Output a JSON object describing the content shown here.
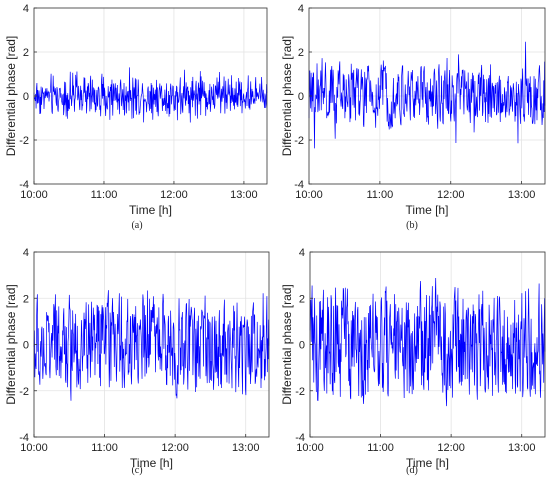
{
  "chart_data": [
    {
      "type": "line",
      "caption": "(a)",
      "xlabel": "Time [h]",
      "ylabel": "Differential phase [rad]",
      "xticks": [
        "10:00",
        "11:00",
        "12:00",
        "13:00"
      ],
      "xlim_hours": [
        10.0,
        13.33
      ],
      "ylim": [
        -4,
        4
      ],
      "yticks": [
        -4,
        -2,
        0,
        2,
        4
      ],
      "grid": true,
      "series": [
        {
          "color": "#0000ff",
          "amplitude_rad": 1.3
        }
      ]
    },
    {
      "type": "line",
      "caption": "(b)",
      "xlabel": "Time [h]",
      "ylabel": "Differential phase [rad]",
      "xticks": [
        "10:00",
        "11:00",
        "12:00",
        "13:00"
      ],
      "xlim_hours": [
        10.0,
        13.33
      ],
      "ylim": [
        -4,
        4
      ],
      "yticks": [
        -4,
        -2,
        0,
        2,
        4
      ],
      "grid": true,
      "series": [
        {
          "color": "#0000ff",
          "amplitude_rad": 3.0
        }
      ]
    },
    {
      "type": "line",
      "caption": "(c)",
      "xlabel": "Time [h]",
      "ylabel": "Differential phase [rad]",
      "xticks": [
        "10:00",
        "11:00",
        "12:00",
        "13:00"
      ],
      "xlim_hours": [
        10.0,
        13.33
      ],
      "ylim": [
        -4,
        4
      ],
      "yticks": [
        -4,
        -2,
        0,
        2,
        4
      ],
      "grid": true,
      "series": [
        {
          "color": "#0000ff",
          "amplitude_rad": 3.1
        }
      ]
    },
    {
      "type": "line",
      "caption": "(d)",
      "xlabel": "Time [h]",
      "ylabel": "Differential phase [rad]",
      "xticks": [
        "10:00",
        "11:00",
        "12:00",
        "13:00"
      ],
      "xlim_hours": [
        10.0,
        13.33
      ],
      "ylim": [
        -4,
        4
      ],
      "yticks": [
        -4,
        -2,
        0,
        2,
        4
      ],
      "grid": true,
      "series": [
        {
          "color": "#0000ff",
          "amplitude_rad": 3.14
        }
      ]
    }
  ]
}
